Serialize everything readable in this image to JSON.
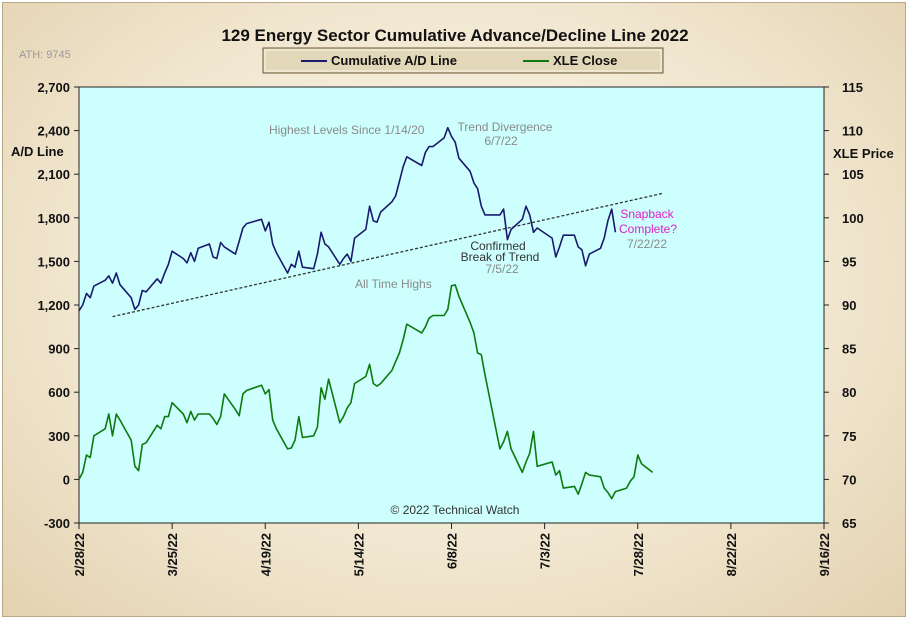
{
  "chart_data": {
    "type": "line",
    "title": "129 Energy Sector Cumulative Advance/Decline Line 2022",
    "ylabel_left": "A/D Line",
    "ylabel_right": "XLE Price",
    "ylim_left": [
      -300,
      2700
    ],
    "ylim_right": [
      65,
      115
    ],
    "yticks_left": [
      "2,700",
      "2,400",
      "2,100",
      "1,800",
      "1,500",
      "1,200",
      "900",
      "600",
      "300",
      "0",
      "-300"
    ],
    "yticks_right": [
      "115",
      "110",
      "105",
      "100",
      "95",
      "90",
      "85",
      "80",
      "75",
      "70",
      "65"
    ],
    "x_range": [
      "2022-02-28",
      "2022-09-16"
    ],
    "xticks": [
      "2/28/22",
      "3/25/22",
      "4/19/22",
      "5/14/22",
      "6/8/22",
      "7/3/22",
      "7/28/22",
      "8/22/22",
      "9/16/22"
    ],
    "legend_placement": "top-center",
    "grid": false,
    "colors": {
      "ad": "#1a1a6e",
      "xle": "#0d7a0d",
      "plot_bg": "#ccfffd",
      "trend": "#333333",
      "annotation_magenta": "#e020c8"
    },
    "series": [
      {
        "name": "Cumulative A/D Line",
        "axis": "left",
        "points": [
          [
            "2022-02-28",
            1160
          ],
          [
            "2022-03-01",
            1200
          ],
          [
            "2022-03-02",
            1280
          ],
          [
            "2022-03-03",
            1250
          ],
          [
            "2022-03-04",
            1330
          ],
          [
            "2022-03-07",
            1370
          ],
          [
            "2022-03-08",
            1400
          ],
          [
            "2022-03-09",
            1350
          ],
          [
            "2022-03-10",
            1420
          ],
          [
            "2022-03-11",
            1340
          ],
          [
            "2022-03-14",
            1250
          ],
          [
            "2022-03-15",
            1170
          ],
          [
            "2022-03-16",
            1200
          ],
          [
            "2022-03-17",
            1300
          ],
          [
            "2022-03-18",
            1290
          ],
          [
            "2022-03-21",
            1380
          ],
          [
            "2022-03-22",
            1350
          ],
          [
            "2022-03-23",
            1420
          ],
          [
            "2022-03-24",
            1480
          ],
          [
            "2022-03-25",
            1570
          ],
          [
            "2022-03-28",
            1520
          ],
          [
            "2022-03-29",
            1490
          ],
          [
            "2022-03-30",
            1560
          ],
          [
            "2022-03-31",
            1500
          ],
          [
            "2022-04-01",
            1590
          ],
          [
            "2022-04-04",
            1620
          ],
          [
            "2022-04-05",
            1530
          ],
          [
            "2022-04-06",
            1520
          ],
          [
            "2022-04-07",
            1630
          ],
          [
            "2022-04-08",
            1600
          ],
          [
            "2022-04-11",
            1550
          ],
          [
            "2022-04-12",
            1640
          ],
          [
            "2022-04-13",
            1730
          ],
          [
            "2022-04-14",
            1760
          ],
          [
            "2022-04-18",
            1790
          ],
          [
            "2022-04-19",
            1710
          ],
          [
            "2022-04-20",
            1770
          ],
          [
            "2022-04-21",
            1620
          ],
          [
            "2022-04-22",
            1560
          ],
          [
            "2022-04-25",
            1420
          ],
          [
            "2022-04-26",
            1480
          ],
          [
            "2022-04-27",
            1460
          ],
          [
            "2022-04-28",
            1570
          ],
          [
            "2022-04-29",
            1460
          ],
          [
            "2022-05-02",
            1450
          ],
          [
            "2022-05-03",
            1550
          ],
          [
            "2022-05-04",
            1700
          ],
          [
            "2022-05-05",
            1620
          ],
          [
            "2022-05-06",
            1600
          ],
          [
            "2022-05-09",
            1480
          ],
          [
            "2022-05-10",
            1520
          ],
          [
            "2022-05-11",
            1550
          ],
          [
            "2022-05-12",
            1500
          ],
          [
            "2022-05-13",
            1660
          ],
          [
            "2022-05-16",
            1720
          ],
          [
            "2022-05-17",
            1880
          ],
          [
            "2022-05-18",
            1780
          ],
          [
            "2022-05-19",
            1770
          ],
          [
            "2022-05-20",
            1840
          ],
          [
            "2022-05-23",
            1910
          ],
          [
            "2022-05-24",
            1950
          ],
          [
            "2022-05-25",
            2050
          ],
          [
            "2022-05-26",
            2150
          ],
          [
            "2022-05-27",
            2220
          ],
          [
            "2022-05-31",
            2160
          ],
          [
            "2022-06-01",
            2250
          ],
          [
            "2022-06-02",
            2290
          ],
          [
            "2022-06-03",
            2290
          ],
          [
            "2022-06-06",
            2350
          ],
          [
            "2022-06-07",
            2420
          ],
          [
            "2022-06-08",
            2360
          ],
          [
            "2022-06-09",
            2320
          ],
          [
            "2022-06-10",
            2210
          ],
          [
            "2022-06-13",
            2120
          ],
          [
            "2022-06-14",
            2040
          ],
          [
            "2022-06-15",
            2000
          ],
          [
            "2022-06-16",
            1880
          ],
          [
            "2022-06-17",
            1820
          ],
          [
            "2022-06-21",
            1820
          ],
          [
            "2022-06-22",
            1860
          ],
          [
            "2022-06-23",
            1650
          ],
          [
            "2022-06-24",
            1720
          ],
          [
            "2022-06-27",
            1790
          ],
          [
            "2022-06-28",
            1880
          ],
          [
            "2022-06-29",
            1820
          ],
          [
            "2022-06-30",
            1700
          ],
          [
            "2022-07-01",
            1730
          ],
          [
            "2022-07-05",
            1660
          ],
          [
            "2022-07-06",
            1530
          ],
          [
            "2022-07-07",
            1600
          ],
          [
            "2022-07-08",
            1680
          ],
          [
            "2022-07-11",
            1680
          ],
          [
            "2022-07-12",
            1600
          ],
          [
            "2022-07-13",
            1580
          ],
          [
            "2022-07-14",
            1470
          ],
          [
            "2022-07-15",
            1550
          ],
          [
            "2022-07-18",
            1590
          ],
          [
            "2022-07-19",
            1660
          ],
          [
            "2022-07-20",
            1780
          ],
          [
            "2022-07-21",
            1860
          ],
          [
            "2022-07-22",
            1700
          ]
        ]
      },
      {
        "name": "XLE Close",
        "axis": "right",
        "points": [
          [
            "2022-02-28",
            70.0
          ],
          [
            "2022-03-01",
            70.8
          ],
          [
            "2022-03-02",
            72.8
          ],
          [
            "2022-03-03",
            72.5
          ],
          [
            "2022-03-04",
            75.0
          ],
          [
            "2022-03-07",
            75.8
          ],
          [
            "2022-03-08",
            77.5
          ],
          [
            "2022-03-09",
            75.0
          ],
          [
            "2022-03-10",
            77.5
          ],
          [
            "2022-03-11",
            76.8
          ],
          [
            "2022-03-14",
            74.5
          ],
          [
            "2022-03-15",
            71.5
          ],
          [
            "2022-03-16",
            71.0
          ],
          [
            "2022-03-17",
            74.0
          ],
          [
            "2022-03-18",
            74.2
          ],
          [
            "2022-03-21",
            76.2
          ],
          [
            "2022-03-22",
            75.8
          ],
          [
            "2022-03-23",
            77.2
          ],
          [
            "2022-03-24",
            77.2
          ],
          [
            "2022-03-25",
            78.8
          ],
          [
            "2022-03-28",
            77.5
          ],
          [
            "2022-03-29",
            76.5
          ],
          [
            "2022-03-30",
            77.8
          ],
          [
            "2022-03-31",
            76.8
          ],
          [
            "2022-04-01",
            77.5
          ],
          [
            "2022-04-04",
            77.5
          ],
          [
            "2022-04-05",
            77.0
          ],
          [
            "2022-04-06",
            76.3
          ],
          [
            "2022-04-07",
            77.2
          ],
          [
            "2022-04-08",
            79.8
          ],
          [
            "2022-04-11",
            78.0
          ],
          [
            "2022-04-12",
            77.3
          ],
          [
            "2022-04-13",
            79.8
          ],
          [
            "2022-04-14",
            80.2
          ],
          [
            "2022-04-18",
            80.8
          ],
          [
            "2022-04-19",
            79.8
          ],
          [
            "2022-04-20",
            80.3
          ],
          [
            "2022-04-21",
            76.8
          ],
          [
            "2022-04-22",
            75.8
          ],
          [
            "2022-04-25",
            73.5
          ],
          [
            "2022-04-26",
            73.6
          ],
          [
            "2022-04-27",
            74.5
          ],
          [
            "2022-04-28",
            77.2
          ],
          [
            "2022-04-29",
            74.8
          ],
          [
            "2022-05-02",
            75.0
          ],
          [
            "2022-05-03",
            76.0
          ],
          [
            "2022-05-04",
            80.5
          ],
          [
            "2022-05-05",
            79.2
          ],
          [
            "2022-05-06",
            81.5
          ],
          [
            "2022-05-09",
            76.5
          ],
          [
            "2022-05-10",
            77.2
          ],
          [
            "2022-05-11",
            78.2
          ],
          [
            "2022-05-12",
            78.8
          ],
          [
            "2022-05-13",
            81.0
          ],
          [
            "2022-05-16",
            81.8
          ],
          [
            "2022-05-17",
            83.2
          ],
          [
            "2022-05-18",
            81.0
          ],
          [
            "2022-05-19",
            80.7
          ],
          [
            "2022-05-20",
            81.0
          ],
          [
            "2022-05-23",
            82.5
          ],
          [
            "2022-05-24",
            83.5
          ],
          [
            "2022-05-25",
            84.5
          ],
          [
            "2022-05-26",
            86.0
          ],
          [
            "2022-05-27",
            87.8
          ],
          [
            "2022-05-31",
            86.8
          ],
          [
            "2022-06-01",
            87.5
          ],
          [
            "2022-06-02",
            88.5
          ],
          [
            "2022-06-03",
            88.8
          ],
          [
            "2022-06-06",
            88.8
          ],
          [
            "2022-06-07",
            89.5
          ],
          [
            "2022-06-08",
            92.2
          ],
          [
            "2022-06-09",
            92.3
          ],
          [
            "2022-06-10",
            91.0
          ],
          [
            "2022-06-13",
            88.0
          ],
          [
            "2022-06-14",
            86.8
          ],
          [
            "2022-06-15",
            84.5
          ],
          [
            "2022-06-16",
            84.3
          ],
          [
            "2022-06-17",
            82.0
          ],
          [
            "2022-06-21",
            73.5
          ],
          [
            "2022-06-22",
            74.3
          ],
          [
            "2022-06-23",
            75.5
          ],
          [
            "2022-06-24",
            73.5
          ],
          [
            "2022-06-27",
            70.8
          ],
          [
            "2022-06-28",
            72.0
          ],
          [
            "2022-06-29",
            73.0
          ],
          [
            "2022-06-30",
            75.5
          ],
          [
            "2022-07-01",
            71.5
          ],
          [
            "2022-07-05",
            72.0
          ],
          [
            "2022-07-06",
            70.5
          ],
          [
            "2022-07-07",
            71.0
          ],
          [
            "2022-07-08",
            69.0
          ],
          [
            "2022-07-11",
            69.2
          ],
          [
            "2022-07-12",
            68.3
          ],
          [
            "2022-07-13",
            69.5
          ],
          [
            "2022-07-14",
            70.8
          ],
          [
            "2022-07-15",
            70.5
          ],
          [
            "2022-07-18",
            70.3
          ],
          [
            "2022-07-19",
            69.0
          ],
          [
            "2022-07-20",
            68.5
          ],
          [
            "2022-07-21",
            67.8
          ],
          [
            "2022-07-22",
            68.6
          ],
          [
            "2022-07-25",
            69.0
          ],
          [
            "2022-07-26",
            69.8
          ],
          [
            "2022-07-27",
            70.3
          ],
          [
            "2022-07-28",
            72.8
          ],
          [
            "2022-07-29",
            71.8
          ],
          [
            "2022-08-01",
            70.8
          ]
        ]
      }
    ],
    "trendline": {
      "axis": "left",
      "start": [
        "2022-03-09",
        1120
      ],
      "end": [
        "2022-08-04",
        1970
      ]
    },
    "annotations": [
      {
        "lines": [
          "Highest Levels Since 1/14/20"
        ],
        "style": "gray"
      },
      {
        "lines": [
          "Trend Divergence",
          "6/7/22"
        ],
        "style": "gray"
      },
      {
        "lines": [
          "All Time Highs"
        ],
        "style": "gray"
      },
      {
        "lines": [
          "Confirmed",
          "Break of Trend",
          "7/5/22"
        ],
        "style": "mixed"
      },
      {
        "lines": [
          "Snapback",
          "Complete?",
          "7/22/22"
        ],
        "style": "magenta"
      }
    ],
    "ath_label": "ATH:  9745",
    "copyright": "© 2022 Technical Watch"
  }
}
